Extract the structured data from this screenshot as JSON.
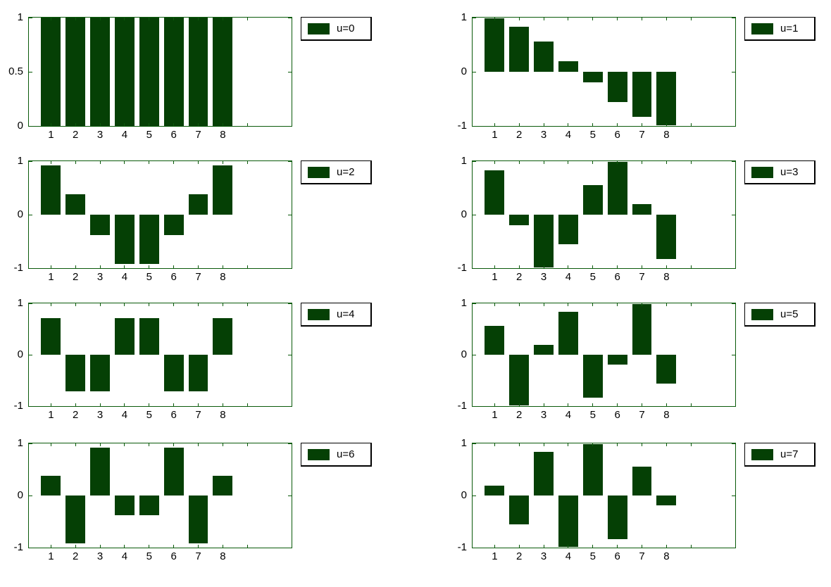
{
  "figure": {
    "background": "#ffffff",
    "bar_color": "#054005",
    "axis_color": "#0a5a0a",
    "label_color": "#000000",
    "legend_border_color": "#000000",
    "rows": 4,
    "cols": 2
  },
  "chart_data": [
    {
      "type": "bar",
      "legend": "u=0",
      "x": [
        1,
        2,
        3,
        4,
        5,
        6,
        7,
        8
      ],
      "values": [
        1,
        1,
        1,
        1,
        1,
        1,
        1,
        1
      ],
      "xlim": [
        0.1,
        10.8
      ],
      "ylim": [
        0,
        1
      ],
      "xticks": [
        1,
        2,
        3,
        4,
        5,
        6,
        7,
        8,
        9
      ],
      "yticks": [
        0,
        0.5,
        1
      ],
      "ytick_labels": [
        "0",
        "0.5",
        "1"
      ],
      "bar_width": 0.8,
      "grid": false,
      "legend_position": "outside-right"
    },
    {
      "type": "bar",
      "legend": "u=1",
      "x": [
        1,
        2,
        3,
        4,
        5,
        6,
        7,
        8
      ],
      "values": [
        0.9808,
        0.8315,
        0.5556,
        0.1951,
        -0.1951,
        -0.5556,
        -0.8315,
        -0.9808
      ],
      "xlim": [
        0.1,
        10.8
      ],
      "ylim": [
        -1,
        1
      ],
      "xticks": [
        1,
        2,
        3,
        4,
        5,
        6,
        7,
        8,
        9
      ],
      "yticks": [
        -1,
        0,
        1
      ],
      "ytick_labels": [
        "-1",
        "0",
        "1"
      ],
      "bar_width": 0.8,
      "grid": false,
      "legend_position": "outside-right"
    },
    {
      "type": "bar",
      "legend": "u=2",
      "x": [
        1,
        2,
        3,
        4,
        5,
        6,
        7,
        8
      ],
      "values": [
        0.9239,
        0.3827,
        -0.3827,
        -0.9239,
        -0.9239,
        -0.3827,
        0.3827,
        0.9239
      ],
      "xlim": [
        0.1,
        10.8
      ],
      "ylim": [
        -1,
        1
      ],
      "xticks": [
        1,
        2,
        3,
        4,
        5,
        6,
        7,
        8,
        9
      ],
      "yticks": [
        -1,
        0,
        1
      ],
      "ytick_labels": [
        "-1",
        "0",
        "1"
      ],
      "bar_width": 0.8,
      "grid": false,
      "legend_position": "outside-right"
    },
    {
      "type": "bar",
      "legend": "u=3",
      "x": [
        1,
        2,
        3,
        4,
        5,
        6,
        7,
        8
      ],
      "values": [
        0.8315,
        -0.1951,
        -0.9808,
        -0.5556,
        0.5556,
        0.9808,
        0.1951,
        -0.8315
      ],
      "xlim": [
        0.1,
        10.8
      ],
      "ylim": [
        -1,
        1
      ],
      "xticks": [
        1,
        2,
        3,
        4,
        5,
        6,
        7,
        8,
        9
      ],
      "yticks": [
        -1,
        0,
        1
      ],
      "ytick_labels": [
        "-1",
        "0",
        "1"
      ],
      "bar_width": 0.8,
      "grid": false,
      "legend_position": "outside-right"
    },
    {
      "type": "bar",
      "legend": "u=4",
      "x": [
        1,
        2,
        3,
        4,
        5,
        6,
        7,
        8
      ],
      "values": [
        0.7071,
        -0.7071,
        -0.7071,
        0.7071,
        0.7071,
        -0.7071,
        -0.7071,
        0.7071
      ],
      "xlim": [
        0.1,
        10.8
      ],
      "ylim": [
        -1,
        1
      ],
      "xticks": [
        1,
        2,
        3,
        4,
        5,
        6,
        7,
        8,
        9
      ],
      "yticks": [
        -1,
        0,
        1
      ],
      "ytick_labels": [
        "-1",
        "0",
        "1"
      ],
      "bar_width": 0.8,
      "grid": false,
      "legend_position": "outside-right"
    },
    {
      "type": "bar",
      "legend": "u=5",
      "x": [
        1,
        2,
        3,
        4,
        5,
        6,
        7,
        8
      ],
      "values": [
        0.5556,
        -0.9808,
        0.1951,
        0.8315,
        -0.8315,
        -0.1951,
        0.9808,
        -0.5556
      ],
      "xlim": [
        0.1,
        10.8
      ],
      "ylim": [
        -1,
        1
      ],
      "xticks": [
        1,
        2,
        3,
        4,
        5,
        6,
        7,
        8,
        9
      ],
      "yticks": [
        -1,
        0,
        1
      ],
      "ytick_labels": [
        "-1",
        "0",
        "1"
      ],
      "bar_width": 0.8,
      "grid": false,
      "legend_position": "outside-right"
    },
    {
      "type": "bar",
      "legend": "u=6",
      "x": [
        1,
        2,
        3,
        4,
        5,
        6,
        7,
        8
      ],
      "values": [
        0.3827,
        -0.9239,
        0.9239,
        -0.3827,
        -0.3827,
        0.9239,
        -0.9239,
        0.3827
      ],
      "xlim": [
        0.1,
        10.8
      ],
      "ylim": [
        -1,
        1
      ],
      "xticks": [
        1,
        2,
        3,
        4,
        5,
        6,
        7,
        8,
        9
      ],
      "yticks": [
        -1,
        0,
        1
      ],
      "ytick_labels": [
        "-1",
        "0",
        "1"
      ],
      "bar_width": 0.8,
      "grid": false,
      "legend_position": "outside-right"
    },
    {
      "type": "bar",
      "legend": "u=7",
      "x": [
        1,
        2,
        3,
        4,
        5,
        6,
        7,
        8
      ],
      "values": [
        0.1951,
        -0.5556,
        0.8315,
        -0.9808,
        0.9808,
        -0.8315,
        0.5556,
        -0.1951
      ],
      "xlim": [
        0.1,
        10.8
      ],
      "ylim": [
        -1,
        1
      ],
      "xticks": [
        1,
        2,
        3,
        4,
        5,
        6,
        7,
        8,
        9
      ],
      "yticks": [
        -1,
        0,
        1
      ],
      "ytick_labels": [
        "-1",
        "0",
        "1"
      ],
      "bar_width": 0.8,
      "grid": false,
      "legend_position": "outside-right"
    }
  ]
}
